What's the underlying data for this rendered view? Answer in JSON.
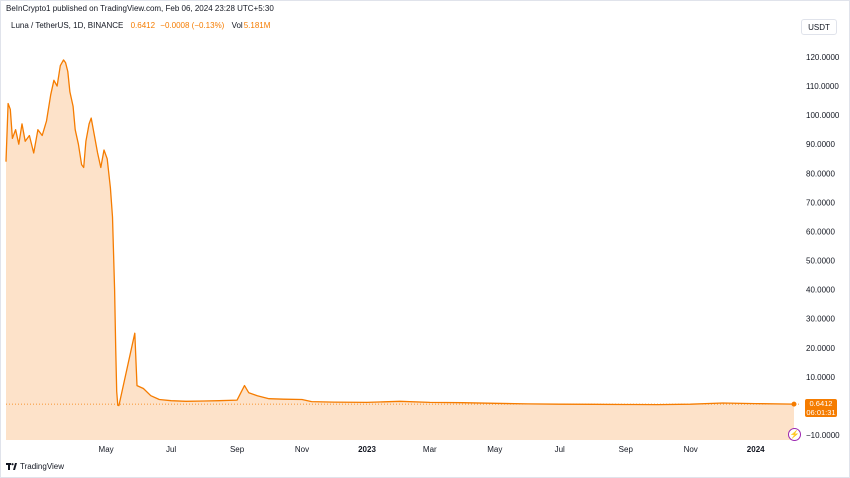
{
  "published": "BeInCrypto1 published on TradingView.com, Feb 06, 2024 23:28 UTC+5:30",
  "symbol": {
    "name": "Luna / TetherUS, 1D, BINANCE",
    "last": "0.6412",
    "change": "−0.0008 (−0.13%)",
    "vol_label": "Vol",
    "vol_value": "5.181M"
  },
  "currency": "USDT",
  "price_tag": {
    "price": "0.6412",
    "countdown": "06:01:31"
  },
  "logo_text": "TradingView",
  "colors": {
    "line": "#f57c00",
    "fill": "#fde2c9",
    "tag": "#f57c00"
  },
  "icons": {
    "alert": "lightning-icon",
    "logo": "tradingview-logo-icon"
  },
  "chart_data": {
    "type": "area",
    "title": "",
    "xlabel": "",
    "ylabel": "",
    "ylim": [
      -12,
      130
    ],
    "grid": false,
    "y_ticks": [
      "120.0000",
      "110.0000",
      "100.0000",
      "90.0000",
      "80.0000",
      "70.0000",
      "60.0000",
      "50.0000",
      "40.0000",
      "30.0000",
      "20.0000",
      "10.0000",
      "−10.0000"
    ],
    "y_tick_values": [
      120,
      110,
      100,
      90,
      80,
      70,
      60,
      50,
      40,
      30,
      20,
      10,
      -10
    ],
    "x_ticks": [
      "May",
      "Jul",
      "Sep",
      "Nov",
      "2023",
      "Mar",
      "May",
      "Jul",
      "Sep",
      "Nov",
      "2024"
    ],
    "x_tick_dates": [
      "2022-05-01",
      "2022-07-01",
      "2022-09-01",
      "2022-11-01",
      "2023-01-01",
      "2023-03-01",
      "2023-05-01",
      "2023-07-01",
      "2023-09-01",
      "2023-11-01",
      "2024-01-01"
    ],
    "bold_x_ticks": [
      "2023",
      "2024"
    ],
    "x_range": [
      "2022-01-27",
      "2024-02-06"
    ],
    "series": [
      {
        "points": [
          [
            "2022-01-27",
            84
          ],
          [
            "2022-01-29",
            104
          ],
          [
            "2022-01-31",
            102
          ],
          [
            "2022-02-02",
            92
          ],
          [
            "2022-02-05",
            95
          ],
          [
            "2022-02-08",
            90
          ],
          [
            "2022-02-11",
            97
          ],
          [
            "2022-02-14",
            91
          ],
          [
            "2022-02-18",
            93
          ],
          [
            "2022-02-22",
            87
          ],
          [
            "2022-02-26",
            95
          ],
          [
            "2022-03-02",
            93
          ],
          [
            "2022-03-06",
            98
          ],
          [
            "2022-03-10",
            107
          ],
          [
            "2022-03-13",
            112
          ],
          [
            "2022-03-16",
            110
          ],
          [
            "2022-03-19",
            117
          ],
          [
            "2022-03-22",
            119
          ],
          [
            "2022-03-24",
            118
          ],
          [
            "2022-03-26",
            115
          ],
          [
            "2022-03-28",
            108
          ],
          [
            "2022-03-31",
            103
          ],
          [
            "2022-04-02",
            95
          ],
          [
            "2022-04-05",
            90
          ],
          [
            "2022-04-08",
            83
          ],
          [
            "2022-04-10",
            82
          ],
          [
            "2022-04-12",
            91
          ],
          [
            "2022-04-15",
            97
          ],
          [
            "2022-04-17",
            99
          ],
          [
            "2022-04-20",
            93
          ],
          [
            "2022-04-23",
            87
          ],
          [
            "2022-04-26",
            82
          ],
          [
            "2022-04-29",
            88
          ],
          [
            "2022-05-02",
            85
          ],
          [
            "2022-05-05",
            75
          ],
          [
            "2022-05-07",
            65
          ],
          [
            "2022-05-09",
            40
          ],
          [
            "2022-05-10",
            20
          ],
          [
            "2022-05-11",
            5
          ],
          [
            "2022-05-12",
            0.2
          ],
          [
            "2022-05-13",
            0.1
          ],
          [
            "2022-05-28",
            25
          ],
          [
            "2022-05-30",
            7
          ],
          [
            "2022-06-05",
            6
          ],
          [
            "2022-06-12",
            3.5
          ],
          [
            "2022-06-20",
            2.2
          ],
          [
            "2022-07-01",
            1.8
          ],
          [
            "2022-07-15",
            1.6
          ],
          [
            "2022-08-01",
            1.7
          ],
          [
            "2022-08-15",
            1.8
          ],
          [
            "2022-09-01",
            2.0
          ],
          [
            "2022-09-08",
            7
          ],
          [
            "2022-09-12",
            4.5
          ],
          [
            "2022-09-20",
            3.5
          ],
          [
            "2022-10-01",
            2.5
          ],
          [
            "2022-10-15",
            2.3
          ],
          [
            "2022-11-01",
            2.2
          ],
          [
            "2022-11-10",
            1.5
          ],
          [
            "2022-12-01",
            1.3
          ],
          [
            "2023-01-01",
            1.2
          ],
          [
            "2023-02-01",
            1.6
          ],
          [
            "2023-03-01",
            1.2
          ],
          [
            "2023-04-01",
            1.1
          ],
          [
            "2023-05-01",
            0.9
          ],
          [
            "2023-06-01",
            0.7
          ],
          [
            "2023-07-01",
            0.6
          ],
          [
            "2023-08-01",
            0.55
          ],
          [
            "2023-09-01",
            0.5
          ],
          [
            "2023-10-01",
            0.45
          ],
          [
            "2023-11-01",
            0.6
          ],
          [
            "2023-12-01",
            1.0
          ],
          [
            "2024-01-01",
            0.8
          ],
          [
            "2024-02-06",
            0.6412
          ]
        ]
      }
    ]
  }
}
